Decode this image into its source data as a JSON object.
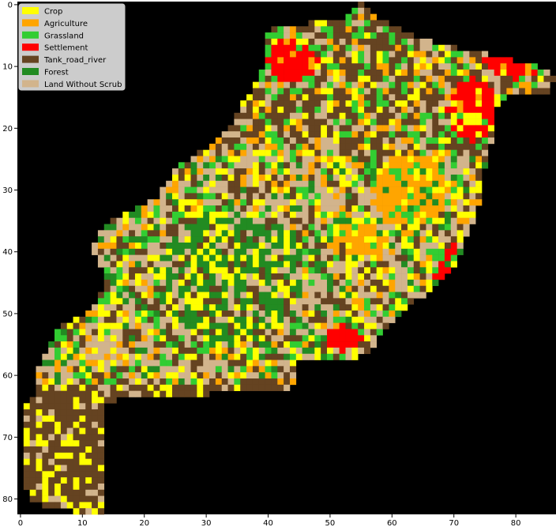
{
  "chart_data": {
    "type": "heatmap",
    "title": "",
    "xlabel": "",
    "ylabel": "",
    "grid_cols": 87,
    "grid_rows": 83,
    "xlim": [
      0,
      87
    ],
    "ylim": [
      83,
      0
    ],
    "x_ticks": [
      0,
      10,
      20,
      30,
      40,
      50,
      60,
      70,
      80
    ],
    "y_ticks": [
      0,
      10,
      20,
      30,
      40,
      50,
      60,
      70,
      80
    ],
    "background_color": "#000000",
    "legend_position": "upper-left",
    "legend": [
      {
        "name": "Crop",
        "color": "#ffff00"
      },
      {
        "name": "Agriculture",
        "color": "#ffa500"
      },
      {
        "name": "Grassland",
        "color": "#32cd32"
      },
      {
        "name": "Settlement",
        "color": "#ff0000"
      },
      {
        "name": "Tank_road_river",
        "color": "#654321"
      },
      {
        "name": "Forest",
        "color": "#228b22"
      },
      {
        "name": "Land Without Scrub",
        "color": "#d2b48c"
      }
    ]
  }
}
